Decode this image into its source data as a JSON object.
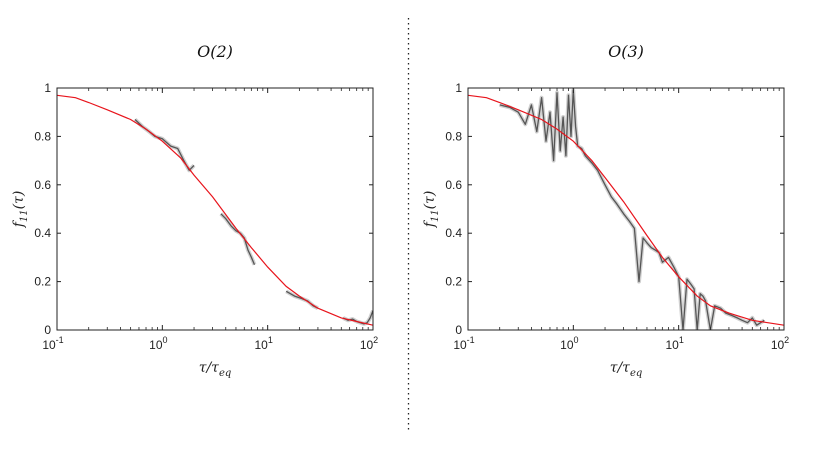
{
  "chart_data": [
    {
      "type": "line",
      "title": "O(2)",
      "xlabel": "τ/τ",
      "xlabel_sub": "eq",
      "ylabel": "f(τ)",
      "ylabel_sub": "11",
      "x_scale": "log",
      "xlim": [
        0.1,
        100
      ],
      "ylim": [
        0,
        1
      ],
      "x_ticks": [
        {
          "base": "10",
          "exp": "-1"
        },
        {
          "base": "10",
          "exp": "0"
        },
        {
          "base": "10",
          "exp": "1"
        },
        {
          "base": "10",
          "exp": "2"
        }
      ],
      "y_ticks": [
        "0",
        "0.2",
        "0.4",
        "0.6",
        "0.8",
        "1"
      ],
      "grid": false,
      "fit_curve": {
        "color": "#e8141c",
        "x": [
          0.1,
          0.15,
          0.2,
          0.3,
          0.5,
          0.7,
          1,
          1.5,
          2,
          3,
          5,
          7,
          10,
          15,
          20,
          30,
          50,
          70,
          100
        ],
        "y": [
          0.97,
          0.96,
          0.94,
          0.91,
          0.87,
          0.83,
          0.78,
          0.71,
          0.64,
          0.55,
          0.42,
          0.34,
          0.26,
          0.18,
          0.14,
          0.09,
          0.05,
          0.035,
          0.02
        ]
      },
      "data_segments": [
        {
          "color": "#555555",
          "x": [
            0.55,
            0.65,
            0.75,
            0.85,
            1.0,
            1.2,
            1.4,
            1.6,
            1.8,
            2.0
          ],
          "y": [
            0.87,
            0.84,
            0.82,
            0.8,
            0.79,
            0.76,
            0.75,
            0.7,
            0.66,
            0.68
          ]
        },
        {
          "color": "#555555",
          "x": [
            3.6,
            4.0,
            4.5,
            5.0,
            5.5,
            6.0,
            6.5,
            7.0,
            7.5
          ],
          "y": [
            0.48,
            0.46,
            0.43,
            0.41,
            0.4,
            0.38,
            0.33,
            0.3,
            0.27
          ]
        },
        {
          "color": "#555555",
          "x": [
            15,
            18,
            21,
            24,
            27,
            30
          ],
          "y": [
            0.16,
            0.14,
            0.13,
            0.12,
            0.1,
            0.09
          ]
        },
        {
          "color": "#555555",
          "x": [
            52,
            58,
            64,
            70,
            76,
            82,
            88,
            94,
            100
          ],
          "y": [
            0.05,
            0.04,
            0.045,
            0.035,
            0.03,
            0.025,
            0.03,
            0.05,
            0.08
          ]
        }
      ]
    },
    {
      "type": "line",
      "title": "O(3)",
      "xlabel": "τ/τ",
      "xlabel_sub": "eq",
      "ylabel": "f(τ)",
      "ylabel_sub": "11",
      "x_scale": "log",
      "xlim": [
        0.1,
        100
      ],
      "ylim": [
        0,
        1
      ],
      "x_ticks": [
        {
          "base": "10",
          "exp": "-1"
        },
        {
          "base": "10",
          "exp": "0"
        },
        {
          "base": "10",
          "exp": "1"
        },
        {
          "base": "10",
          "exp": "2"
        }
      ],
      "y_ticks": [
        "0",
        "0.2",
        "0.4",
        "0.6",
        "0.8",
        "1"
      ],
      "grid": false,
      "fit_curve": {
        "color": "#e8141c",
        "x": [
          0.1,
          0.15,
          0.2,
          0.3,
          0.5,
          0.7,
          1,
          1.5,
          2,
          3,
          5,
          7,
          10,
          15,
          20,
          30,
          50,
          70,
          100
        ],
        "y": [
          0.97,
          0.96,
          0.94,
          0.91,
          0.87,
          0.83,
          0.78,
          0.7,
          0.63,
          0.53,
          0.39,
          0.3,
          0.22,
          0.14,
          0.1,
          0.07,
          0.04,
          0.03,
          0.02
        ]
      },
      "data_segments": [
        {
          "color": "#555555",
          "x": [
            0.2,
            0.25,
            0.3,
            0.35,
            0.4,
            0.45,
            0.5,
            0.55,
            0.6,
            0.65,
            0.7,
            0.75,
            0.8,
            0.85,
            0.9,
            0.95,
            1.0,
            1.05,
            1.1,
            1.2,
            1.3,
            1.5,
            1.7,
            2.0,
            2.3,
            2.6,
            3.0,
            3.4,
            3.8,
            4.2,
            4.6,
            5.0,
            5.5,
            6.0,
            6.5,
            7.0,
            8.0,
            9.0,
            10,
            11,
            12,
            13,
            14,
            15,
            16,
            17,
            18,
            20,
            22,
            25,
            28,
            32,
            36,
            40,
            45,
            50,
            55,
            60,
            65
          ],
          "y": [
            0.93,
            0.92,
            0.9,
            0.85,
            0.93,
            0.82,
            0.96,
            0.78,
            0.9,
            0.7,
            0.98,
            0.74,
            0.88,
            0.72,
            0.97,
            0.8,
            0.99,
            0.84,
            0.76,
            0.75,
            0.72,
            0.69,
            0.66,
            0.6,
            0.55,
            0.52,
            0.48,
            0.45,
            0.42,
            0.2,
            0.38,
            0.36,
            0.34,
            0.33,
            0.32,
            0.28,
            0.3,
            0.26,
            0.22,
            0.0,
            0.21,
            0.19,
            0.17,
            0.0,
            0.15,
            0.14,
            0.12,
            0.0,
            0.1,
            0.09,
            0.07,
            0.06,
            0.05,
            0.04,
            0.03,
            0.05,
            0.02,
            0.03,
            0.04
          ]
        }
      ]
    }
  ]
}
